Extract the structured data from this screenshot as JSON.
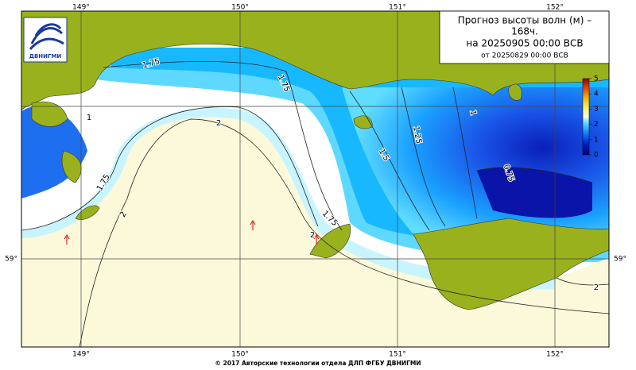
{
  "title": {
    "line1": "Прогноз высоты волн (м) –",
    "line2": "168ч.",
    "line3": "на 20250905 00:00 ВСВ",
    "line4": "от 20250829 00:00 ВСВ"
  },
  "logo": "ДВНИГМИ",
  "longitude_labels": [
    "149°",
    "150°",
    "151°",
    "152°"
  ],
  "latitude_labels": [
    "59°"
  ],
  "colorbar": {
    "ticks": [
      0,
      1,
      2,
      3,
      4,
      5
    ]
  },
  "contour_labels": [
    "1.75",
    "1.75",
    "1.75",
    "1.75",
    "1.5",
    "1.25",
    "2",
    "2",
    "2",
    "1",
    "0.75",
    "2",
    "1"
  ],
  "footer": "© 2017 Авторские технологии отдела ДЛП ФГБУ ДВНИГМИ"
}
